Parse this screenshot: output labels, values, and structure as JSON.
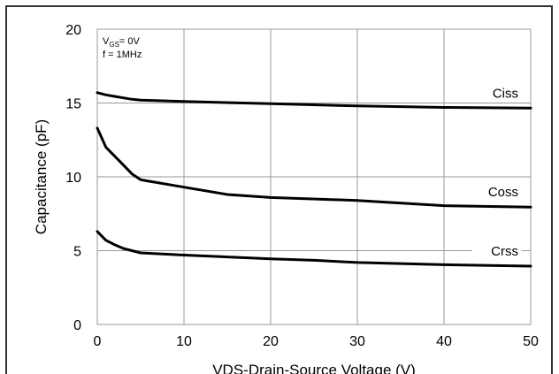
{
  "chart_data": {
    "type": "line",
    "xlabel": "VDS-Drain-Source Voltage (V)",
    "ylabel": "Capacitance (pF)",
    "xlim": [
      0,
      50
    ],
    "ylim": [
      0,
      20
    ],
    "x_ticks": [
      "0",
      "10",
      "20",
      "30",
      "40",
      "50"
    ],
    "y_ticks": [
      "0",
      "5",
      "10",
      "15",
      "20"
    ],
    "grid": true,
    "conditions": {
      "vgs_main": "V",
      "vgs_sub": "GS",
      "vgs_rest": "= 0V",
      "freq": "f = 1MHz"
    },
    "series": [
      {
        "name": "Ciss",
        "x": [
          0,
          1,
          2,
          3,
          4,
          5,
          10,
          20,
          30,
          40,
          50
        ],
        "values": [
          15.7,
          15.55,
          15.45,
          15.35,
          15.25,
          15.2,
          15.1,
          14.95,
          14.8,
          14.7,
          14.65
        ]
      },
      {
        "name": "Coss",
        "x": [
          0,
          1,
          2,
          3,
          4,
          5,
          6,
          10,
          15,
          20,
          30,
          40,
          50
        ],
        "values": [
          13.3,
          12.0,
          11.4,
          10.8,
          10.2,
          9.8,
          9.7,
          9.3,
          8.8,
          8.6,
          8.4,
          8.05,
          7.95
        ]
      },
      {
        "name": "Crss",
        "x": [
          0,
          1,
          2,
          3,
          4,
          5,
          10,
          20,
          25,
          30,
          40,
          50
        ],
        "values": [
          6.3,
          5.7,
          5.4,
          5.15,
          5.0,
          4.85,
          4.7,
          4.45,
          4.35,
          4.2,
          4.05,
          3.95
        ]
      }
    ]
  }
}
